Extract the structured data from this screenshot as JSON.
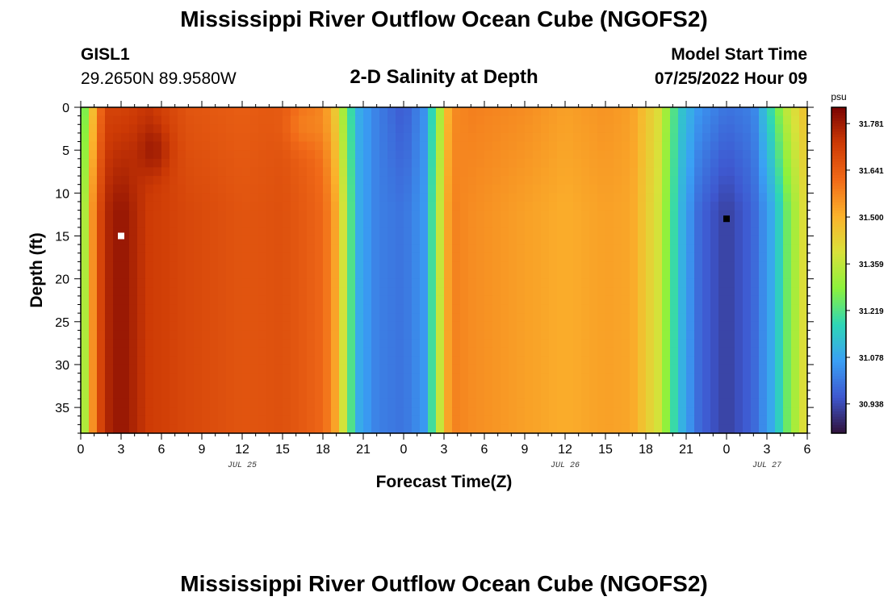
{
  "header": {
    "title": "Mississippi River Outflow Ocean Cube (NGOFS2)",
    "station_id": "GISL1",
    "station_coords": "29.2650N  89.9580W",
    "subtitle": "2-D Salinity at Depth",
    "start_label": "Model Start Time",
    "start_value": "07/25/2022 Hour 09"
  },
  "footer": {
    "title": "Mississippi River Outflow Ocean Cube (NGOFS2)"
  },
  "chart_data": {
    "type": "heatmap",
    "title": "2-D Salinity at Depth",
    "xlabel": "Forecast Time(Z)",
    "ylabel": "Depth (ft)",
    "x_range_hours": [
      0,
      54
    ],
    "y_range": [
      0,
      38
    ],
    "y_inverted": true,
    "x_tick_labels": [
      "0",
      "3",
      "6",
      "9",
      "12",
      "15",
      "18",
      "21",
      "0",
      "3",
      "6",
      "9",
      "12",
      "15",
      "18",
      "21",
      "0",
      "3",
      "6"
    ],
    "y_ticks": [
      0,
      5,
      10,
      15,
      20,
      25,
      30,
      35
    ],
    "date_labels": [
      {
        "label": "JUL 25",
        "at_hour": 12
      },
      {
        "label": "JUL 26",
        "at_hour": 36
      },
      {
        "label": "JUL 27",
        "at_hour": 51
      }
    ],
    "colorbar": {
      "unit": "psu",
      "min": 30.85,
      "max": 31.83,
      "tick_values": [
        30.938,
        31.078,
        31.219,
        31.359,
        31.5,
        31.641,
        31.781
      ],
      "tick_labels": [
        "30.938",
        "31.078",
        "31.219",
        "31.359",
        "31.500",
        "31.641",
        "31.781"
      ],
      "colors": [
        "#30123b",
        "#3e58d0",
        "#3aa0f5",
        "#2ed6b6",
        "#8cf23c",
        "#d9e13a",
        "#fbb22c",
        "#f16a18",
        "#cd3a05",
        "#7a0403"
      ]
    },
    "markers": [
      {
        "color": "#ffffff",
        "hour": 3,
        "depth": 15
      },
      {
        "color": "#000000",
        "hour": 48,
        "depth": 13
      }
    ],
    "salinity_profile": [
      {
        "hour": 0,
        "surface": 31.16,
        "deep": 31.22
      },
      {
        "hour": 0.6,
        "surface": 31.38,
        "deep": 31.45
      },
      {
        "hour": 1.2,
        "surface": 31.58,
        "deep": 31.66
      },
      {
        "hour": 2,
        "surface": 31.7,
        "deep": 31.76
      },
      {
        "hour": 3,
        "surface": 31.7,
        "deep": 31.8
      },
      {
        "hour": 5,
        "surface": 31.73,
        "deep": 31.72
      },
      {
        "hour": 8,
        "surface": 31.66,
        "deep": 31.69
      },
      {
        "hour": 12,
        "surface": 31.64,
        "deep": 31.66
      },
      {
        "hour": 15,
        "surface": 31.66,
        "deep": 31.67
      },
      {
        "hour": 17,
        "surface": 31.62,
        "deep": 31.64
      },
      {
        "hour": 18,
        "surface": 31.58,
        "deep": 31.62
      },
      {
        "hour": 18.8,
        "surface": 31.48,
        "deep": 31.55
      },
      {
        "hour": 19.6,
        "surface": 31.3,
        "deep": 31.36
      },
      {
        "hour": 20.5,
        "surface": 31.1,
        "deep": 31.1
      },
      {
        "hour": 22,
        "surface": 31.02,
        "deep": 31.02
      },
      {
        "hour": 24,
        "surface": 30.96,
        "deep": 31.0
      },
      {
        "hour": 25.6,
        "surface": 31.05,
        "deep": 31.06
      },
      {
        "hour": 26.6,
        "surface": 31.3,
        "deep": 31.34
      },
      {
        "hour": 27.5,
        "surface": 31.56,
        "deep": 31.58
      },
      {
        "hour": 29,
        "surface": 31.58,
        "deep": 31.56
      },
      {
        "hour": 33,
        "surface": 31.56,
        "deep": 31.53
      },
      {
        "hour": 36,
        "surface": 31.53,
        "deep": 31.51
      },
      {
        "hour": 39,
        "surface": 31.55,
        "deep": 31.53
      },
      {
        "hour": 41,
        "surface": 31.53,
        "deep": 31.52
      },
      {
        "hour": 43,
        "surface": 31.4,
        "deep": 31.38
      },
      {
        "hour": 44.5,
        "surface": 31.15,
        "deep": 31.12
      },
      {
        "hour": 46,
        "surface": 31.05,
        "deep": 30.98
      },
      {
        "hour": 48,
        "surface": 31.0,
        "deep": 30.92
      },
      {
        "hour": 50,
        "surface": 31.02,
        "deep": 30.98
      },
      {
        "hour": 51.5,
        "surface": 31.22,
        "deep": 31.1
      },
      {
        "hour": 52.5,
        "surface": 31.36,
        "deep": 31.25
      },
      {
        "hour": 54,
        "surface": 31.48,
        "deep": 31.44
      }
    ]
  }
}
